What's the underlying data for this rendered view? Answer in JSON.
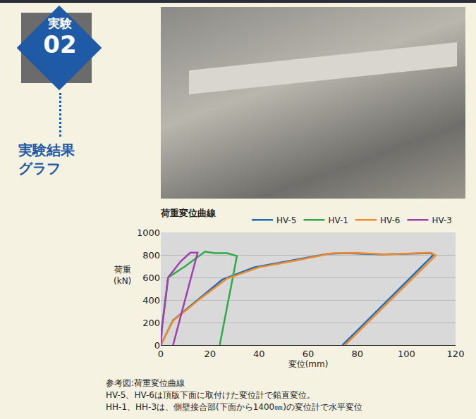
{
  "badge": {
    "line1": "実験",
    "line2": "02"
  },
  "side_label": [
    "実験結果",
    "グラフ"
  ],
  "chart_data": {
    "type": "line",
    "title": "荷重変位曲線",
    "x_label": "変位(mm)",
    "y_label": [
      "荷重",
      "(kN)"
    ],
    "xlim": [
      0,
      120
    ],
    "xticks": [
      0,
      20,
      40,
      60,
      80,
      100,
      120
    ],
    "ylim": [
      0,
      1000
    ],
    "yticks": [
      0,
      200,
      400,
      600,
      800,
      1000
    ],
    "grid": true,
    "legend": "top right",
    "series": [
      {
        "name": "HV-5",
        "color": "#1f6fb8",
        "x": [
          0,
          5,
          15,
          25,
          38,
          55,
          68,
          75,
          90,
          110,
          111,
          74
        ],
        "values": [
          0,
          220,
          400,
          580,
          690,
          760,
          810,
          815,
          805,
          815,
          800,
          0
        ]
      },
      {
        "name": "HV-1",
        "color": "#2eaa4a",
        "x": [
          0,
          0.5,
          3,
          10,
          18,
          22,
          27,
          31,
          24
        ],
        "values": [
          0,
          170,
          600,
          700,
          830,
          815,
          815,
          790,
          0
        ]
      },
      {
        "name": "HV-6",
        "color": "#f28c28",
        "x": [
          0,
          5,
          16,
          27,
          40,
          55,
          70,
          80,
          92,
          110,
          112,
          75
        ],
        "values": [
          0,
          215,
          410,
          590,
          690,
          750,
          815,
          818,
          805,
          820,
          795,
          0
        ]
      },
      {
        "name": "HV-3",
        "color": "#a040b0",
        "x": [
          0,
          0.5,
          3,
          8,
          12,
          15,
          5
        ],
        "values": [
          0,
          150,
          600,
          740,
          820,
          820,
          0
        ]
      }
    ]
  },
  "notes": [
    "参考図:荷重変位曲線",
    "HV-5、HV-6は頂版下面に取付けた変位計で鉛直変位。",
    "HH-1、HH-3は、側壁接合部(下面から1400㎜)の変位計で水平変位"
  ]
}
